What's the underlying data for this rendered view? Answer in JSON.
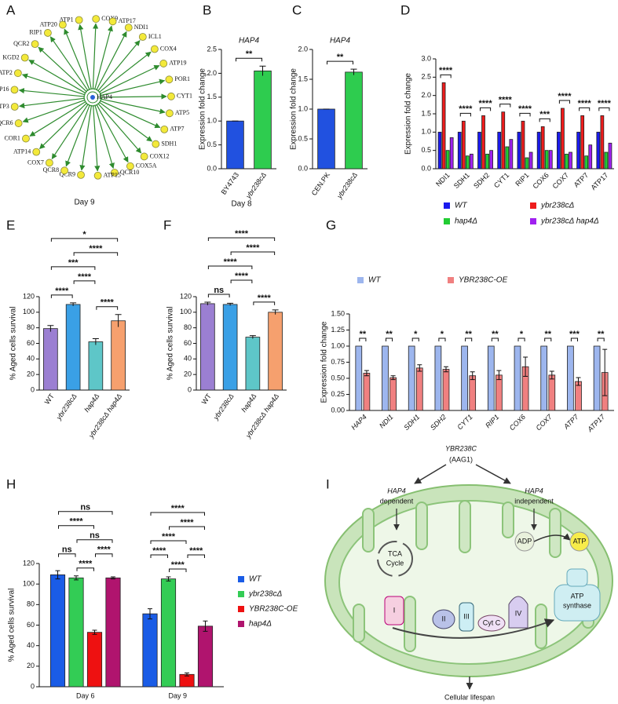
{
  "panel_labels": [
    "A",
    "B",
    "C",
    "D",
    "E",
    "F",
    "G",
    "H",
    "I"
  ],
  "network": {
    "center": "HAP4",
    "nodes": [
      "ATP1",
      "COX9",
      "ATP17",
      "NDI1",
      "ICL1",
      "COX4",
      "ATP19",
      "POR1",
      "CYT1",
      "ATP5",
      "ATP7",
      "SDH1",
      "COX12",
      "COX5A",
      "QCR10",
      "ATP15",
      "QCR9",
      "QCR8",
      "COX7",
      "ATP14",
      "COR1",
      "QCR6",
      "ATP3",
      "ATP16",
      "ATP2",
      "KGD2",
      "QCR2",
      "RIP1",
      "ATP20"
    ]
  },
  "diagram": {
    "gene": "YBR238C",
    "alias": "(AAG1)",
    "left": [
      "HAP4",
      "dependent"
    ],
    "right": [
      "HAP4",
      "independent"
    ],
    "cycle": [
      "TCA",
      "Cycle"
    ],
    "adp": "ADP",
    "atp": "ATP",
    "synthase": [
      "ATP",
      "synthase"
    ],
    "complexes": [
      "I",
      "II",
      "III",
      "Cyt C",
      "IV"
    ],
    "outcome": "Cellular lifespan"
  },
  "chart_data": [
    {
      "type": "bar",
      "title": "HAP4",
      "ylabel": "Expression fold change",
      "categories": [
        "BY4743",
        "ybr238cΔ"
      ],
      "values": [
        1,
        2.05
      ],
      "errors": [
        0,
        0.1
      ],
      "colors": [
        "#2151e0",
        "#2ecc4f"
      ],
      "ylim": [
        0,
        2.5
      ],
      "yticks": [
        {
          "value": 0,
          "label": "0.0"
        },
        0.5,
        {
          "value": 1,
          "label": "1.0"
        },
        1.5,
        {
          "value": 2,
          "label": "2.0"
        },
        2.5
      ],
      "comparisons": [
        {
          "between": [
            "BY4743",
            "ybr238cΔ"
          ],
          "label": "**"
        }
      ]
    },
    {
      "type": "bar",
      "title": "HAP4",
      "ylabel": "Expression fold change",
      "categories": [
        "CEN.PK",
        "ybr238cΔ"
      ],
      "values": [
        1,
        1.62
      ],
      "errors": [
        0,
        0.05
      ],
      "colors": [
        "#2151e0",
        "#2ecc4f"
      ],
      "ylim": [
        0,
        2
      ],
      "yticks": [
        {
          "value": 0,
          "label": "0.0"
        },
        0.5,
        {
          "value": 1,
          "label": "1.0"
        },
        1.5,
        {
          "value": 2,
          "label": "2.0"
        }
      ],
      "comparisons": [
        {
          "between": [
            "CEN.PK",
            "ybr238cΔ"
          ],
          "label": "**"
        }
      ]
    },
    {
      "type": "grouped_bar",
      "ylabel": "Expression fold change",
      "categories": [
        "NDI1",
        "SDH1",
        "SDH2",
        "CYT1",
        "RIP1",
        "COX6",
        "COX7",
        "ATP7",
        "ATP17"
      ],
      "series": [
        {
          "name": "WT",
          "color": "#1a1aee",
          "values": [
            1,
            1,
            1,
            1,
            1,
            1,
            1,
            1,
            1
          ]
        },
        {
          "name": "ybr238cΔ",
          "color": "#ee1c1c",
          "values": [
            2.35,
            1.3,
            1.45,
            1.55,
            1.3,
            1.15,
            1.65,
            1.45,
            1.45
          ]
        },
        {
          "name": "hap4Δ",
          "color": "#22cc33",
          "values": [
            0.5,
            0.35,
            0.4,
            0.6,
            0.3,
            0.5,
            0.4,
            0.35,
            0.45
          ]
        },
        {
          "name": "ybr238cΔ hap4Δ",
          "color": "#a020f0",
          "values": [
            0.85,
            0.4,
            0.5,
            0.8,
            0.45,
            0.5,
            0.45,
            0.65,
            0.7
          ]
        }
      ],
      "ylim": [
        0,
        3
      ],
      "yticks": [
        {
          "value": 0,
          "label": "0.0"
        },
        0.5,
        {
          "value": 1,
          "label": "1.0"
        },
        1.5,
        {
          "value": 2,
          "label": "2.0"
        },
        2.5,
        {
          "value": 3,
          "label": "3.0"
        }
      ],
      "significance": [
        "****",
        "****",
        "****",
        "****",
        "****",
        "***",
        "****",
        "****",
        "****"
      ],
      "legend": "bottom"
    },
    {
      "type": "bar",
      "title": "Day 9",
      "ylabel": "% Aged cells survival",
      "categories": [
        "WT",
        "ybr238cΔ",
        "hap4Δ",
        "ybr238cΔ hap4Δ"
      ],
      "values": [
        79,
        110,
        62,
        89
      ],
      "errors": [
        4,
        2,
        4,
        8
      ],
      "colors": [
        "#9b7fd2",
        "#3aa0e6",
        "#5ec6c8",
        "#f6a06e"
      ],
      "ylim": [
        0,
        120
      ],
      "yticks": [
        0,
        20,
        40,
        60,
        80,
        100,
        120
      ],
      "comparisons": [
        {
          "between": [
            "WT",
            "ybr238cΔ"
          ],
          "label": "****"
        },
        {
          "between": [
            "hap4Δ",
            "ybr238cΔ hap4Δ"
          ],
          "label": "****"
        },
        {
          "between": [
            "ybr238cΔ",
            "hap4Δ"
          ],
          "label": "****"
        },
        {
          "between": [
            "WT",
            "hap4Δ"
          ],
          "label": "***"
        },
        {
          "between": [
            "ybr238cΔ",
            "ybr238cΔ hap4Δ"
          ],
          "label": "****"
        },
        {
          "between": [
            "WT",
            "ybr238cΔ hap4Δ"
          ],
          "label": "*"
        }
      ]
    },
    {
      "type": "bar",
      "title": "Day 8",
      "ylabel": "% Aged cells survival",
      "categories": [
        "WT",
        "ybr238cΔ",
        "hap4Δ",
        "ybr238cΔ hap4Δ"
      ],
      "values": [
        111,
        110,
        68,
        100
      ],
      "errors": [
        2,
        1.5,
        2,
        3
      ],
      "colors": [
        "#9b7fd2",
        "#3aa0e6",
        "#5ec6c8",
        "#f6a06e"
      ],
      "ylim": [
        0,
        120
      ],
      "yticks": [
        0,
        20,
        40,
        60,
        80,
        100,
        120
      ],
      "comparisons": [
        {
          "between": [
            "WT",
            "ybr238cΔ"
          ],
          "label": "ns"
        },
        {
          "between": [
            "hap4Δ",
            "ybr238cΔ hap4Δ"
          ],
          "label": "****"
        },
        {
          "between": [
            "ybr238cΔ",
            "hap4Δ"
          ],
          "label": "****"
        },
        {
          "between": [
            "WT",
            "hap4Δ"
          ],
          "label": "****"
        },
        {
          "between": [
            "ybr238cΔ",
            "ybr238cΔ hap4Δ"
          ],
          "label": "****"
        },
        {
          "between": [
            "WT",
            "ybr238cΔ hap4Δ"
          ],
          "label": "****"
        }
      ]
    },
    {
      "type": "grouped_bar",
      "ylabel": "Expression fold change",
      "categories": [
        "HAP4",
        "NDI1",
        "SDH1",
        "SDH2",
        "CYT1",
        "RIP1",
        "COX6",
        "COX7",
        "ATP7",
        "ATP17"
      ],
      "series": [
        {
          "name": "WT",
          "color": "#9db6ee",
          "values": [
            1,
            1,
            1,
            1,
            1,
            1,
            1,
            1,
            1,
            1
          ]
        },
        {
          "name": "YBR238C-OE",
          "color": "#f08080",
          "values": [
            0.58,
            0.51,
            0.66,
            0.64,
            0.54,
            0.55,
            0.68,
            0.55,
            0.45,
            0.59
          ],
          "errors": [
            0.04,
            0.03,
            0.05,
            0.04,
            0.06,
            0.07,
            0.15,
            0.06,
            0.06,
            0.36
          ]
        }
      ],
      "ylim": [
        0,
        1.5
      ],
      "yticks": [
        {
          "value": 0,
          "label": "0.00"
        },
        {
          "value": 0.25,
          "label": "0.25"
        },
        {
          "value": 0.5,
          "label": "0.50"
        },
        {
          "value": 0.75,
          "label": "0.75"
        },
        {
          "value": 1,
          "label": "1.00"
        },
        {
          "value": 1.25,
          "label": "1.25"
        },
        {
          "value": 1.5,
          "label": "1.50"
        }
      ],
      "significance": [
        "**",
        "**",
        "*",
        "*",
        "**",
        "**",
        "*",
        "**",
        "***",
        "**"
      ],
      "legend": "top"
    },
    {
      "type": "grouped_bar",
      "ylabel": "% Aged cells survival",
      "categories": [
        "Day 6",
        "Day 9"
      ],
      "series": [
        {
          "name": "WT",
          "color": "#1a5ce6",
          "values": [
            109,
            71
          ],
          "errors": [
            4,
            5
          ]
        },
        {
          "name": "ybr238cΔ",
          "color": "#33cc55",
          "values": [
            106,
            105
          ],
          "errors": [
            2,
            2
          ]
        },
        {
          "name": "YBR238C-OE",
          "color": "#ee1111",
          "values": [
            53,
            12
          ],
          "errors": [
            2,
            1.5
          ]
        },
        {
          "name": "hap4Δ",
          "color": "#b0146e",
          "values": [
            106,
            59
          ],
          "errors": [
            1,
            5
          ]
        }
      ],
      "ylim": [
        0,
        120
      ],
      "yticks": [
        0,
        20,
        40,
        60,
        80,
        100,
        120
      ],
      "legend": "right",
      "comparisons": [
        [
          {
            "between": [
              "ybr238cΔ",
              "YBR238C-OE"
            ],
            "label": "****"
          },
          {
            "between": [
              "WT",
              "ybr238cΔ"
            ],
            "label": "ns"
          },
          {
            "between": [
              "YBR238C-OE",
              "hap4Δ"
            ],
            "label": "****"
          },
          {
            "between": [
              "ybr238cΔ",
              "hap4Δ"
            ],
            "label": "ns"
          },
          {
            "between": [
              "WT",
              "YBR238C-OE"
            ],
            "label": "****"
          },
          {
            "between": [
              "WT",
              "hap4Δ"
            ],
            "label": "ns"
          }
        ],
        [
          {
            "between": [
              "ybr238cΔ",
              "YBR238C-OE"
            ],
            "label": "****"
          },
          {
            "between": [
              "WT",
              "ybr238cΔ"
            ],
            "label": "****"
          },
          {
            "between": [
              "YBR238C-OE",
              "hap4Δ"
            ],
            "label": "****"
          },
          {
            "between": [
              "WT",
              "YBR238C-OE"
            ],
            "label": "****"
          },
          {
            "between": [
              "ybr238cΔ",
              "hap4Δ"
            ],
            "label": "****"
          },
          {
            "between": [
              "WT",
              "hap4Δ"
            ],
            "label": "****"
          }
        ]
      ]
    }
  ]
}
